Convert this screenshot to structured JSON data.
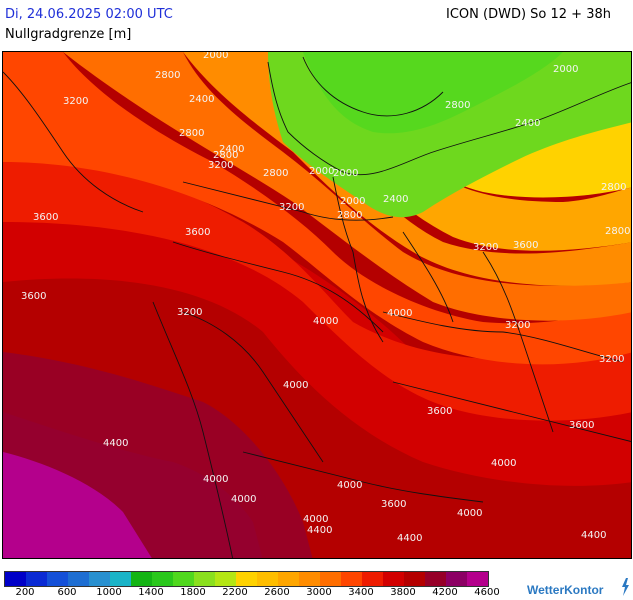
{
  "header": {
    "datetime": "Di, 24.06.2025 02:00 UTC",
    "model_run": "ICON (DWD) So 12 + 38h",
    "parameter": "Nullgradgrenze [m]"
  },
  "legend": {
    "colors": [
      "#0000c8",
      "#0a2ad4",
      "#1450d8",
      "#1e6ed2",
      "#2890d0",
      "#1ab4c8",
      "#14b414",
      "#2ac81c",
      "#50d81e",
      "#8ae01e",
      "#b4e614",
      "#ffd200",
      "#ffbe00",
      "#ffa600",
      "#ff8c00",
      "#ff6e00",
      "#ff4600",
      "#ee1c00",
      "#d20000",
      "#b40000",
      "#960028",
      "#8c0064",
      "#b4008c"
    ],
    "tick_labels": [
      "200",
      "600",
      "1000",
      "1400",
      "1800",
      "2200",
      "2600",
      "3000",
      "3400",
      "3800",
      "4200",
      "4600"
    ]
  },
  "contour_labels": [
    "2000",
    "2800",
    "3200",
    "2400",
    "2800",
    "2800",
    "3200",
    "2400",
    "2800",
    "2000",
    "2000",
    "2000",
    "2400",
    "3200",
    "3600",
    "3600",
    "2800",
    "2000",
    "2800",
    "2400",
    "2800",
    "2800",
    "3200",
    "3600",
    "4000",
    "4000",
    "3600",
    "3200",
    "3200",
    "3200",
    "4000",
    "3600",
    "3600",
    "4400",
    "4000",
    "4000",
    "4000",
    "3600",
    "4000",
    "4400",
    "4400",
    "4400",
    "4000",
    "4000"
  ],
  "brand": "WetterKontor",
  "icons": {
    "brand_mark": "wetterkontor-logo-icon"
  }
}
